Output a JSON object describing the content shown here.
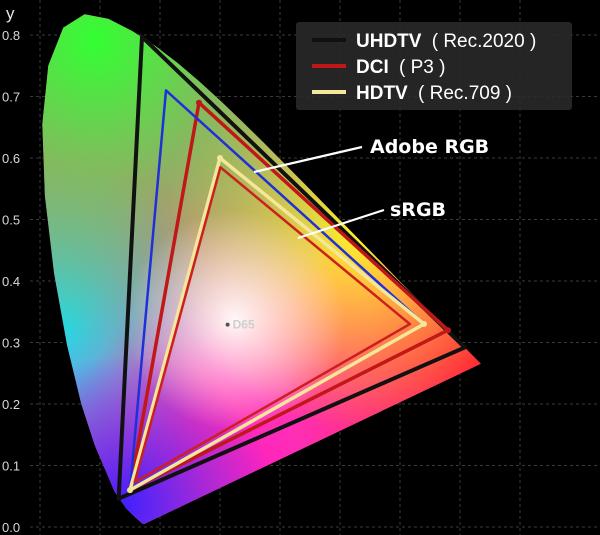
{
  "chart_data": {
    "type": "scatter",
    "subtype": "cie-1931-chromaticity-gamut",
    "title": "",
    "xlabel": "",
    "ylabel": "y",
    "xlim": [
      0.0,
      0.8
    ],
    "ylim": [
      0.0,
      0.85
    ],
    "y_ticks": [
      "0.0",
      "0.1",
      "0.2",
      "0.3",
      "0.4",
      "0.5",
      "0.6",
      "0.7",
      "0.8"
    ],
    "grid": true,
    "legend_position": "top-right",
    "legend": [
      {
        "key": "uhdtv",
        "name": "UHDTV",
        "detail": "( Rec.2020 )",
        "color": "#111111"
      },
      {
        "key": "dci",
        "name": "DCI",
        "detail": "( P3 )",
        "color": "#c01818"
      },
      {
        "key": "hdtv",
        "name": "HDTV",
        "detail": "( Rec.709 )",
        "color": "#f2e79a"
      }
    ],
    "series": [
      {
        "key": "uhdtv",
        "name": "UHDTV ( Rec.2020 )",
        "color": "#111111",
        "points": [
          [
            0.708,
            0.292
          ],
          [
            0.17,
            0.797
          ],
          [
            0.131,
            0.046
          ]
        ]
      },
      {
        "key": "dci",
        "name": "DCI ( P3 )",
        "color": "#c01818",
        "points": [
          [
            0.68,
            0.32
          ],
          [
            0.265,
            0.69
          ],
          [
            0.15,
            0.06
          ]
        ]
      },
      {
        "key": "adobe",
        "name": "Adobe RGB",
        "color": "#2030d8",
        "points": [
          [
            0.64,
            0.33
          ],
          [
            0.21,
            0.71
          ],
          [
            0.15,
            0.06
          ]
        ]
      },
      {
        "key": "hdtv",
        "name": "HDTV ( Rec.709 )",
        "color": "#f2e79a",
        "points": [
          [
            0.64,
            0.33
          ],
          [
            0.3,
            0.6
          ],
          [
            0.15,
            0.06
          ]
        ]
      },
      {
        "key": "srgb",
        "name": "sRGB",
        "color": "#cc2020",
        "points": [
          [
            0.64,
            0.33
          ],
          [
            0.3,
            0.6
          ],
          [
            0.15,
            0.06
          ]
        ]
      }
    ],
    "annotations": [
      {
        "key": "adobe",
        "text": "Adobe RGB"
      },
      {
        "key": "srgb",
        "text": "sRGB"
      }
    ],
    "white_point": {
      "label": "D65",
      "x": 0.3127,
      "y": 0.329
    }
  }
}
